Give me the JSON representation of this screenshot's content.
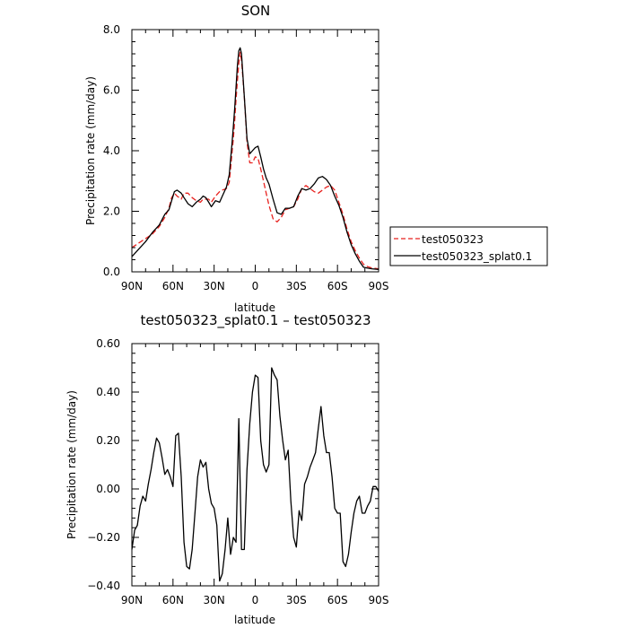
{
  "chart_data": [
    {
      "type": "line",
      "title": "SON",
      "xlabel": "latitude",
      "ylabel": "Precipitation rate (mm/day)",
      "xlim": [
        90,
        -90
      ],
      "ylim": [
        0,
        8
      ],
      "xticks": [
        90,
        60,
        30,
        0,
        -30,
        -60,
        -90
      ],
      "xtick_labels": [
        "90N",
        "60N",
        "30N",
        "0",
        "30S",
        "60S",
        "90S"
      ],
      "yticks": [
        0,
        2,
        4,
        6,
        8
      ],
      "ytick_labels": [
        "0.0",
        "2.0",
        "4.0",
        "6.0",
        "8.0"
      ],
      "legend": "right",
      "series": [
        {
          "name": "test050323",
          "color": "#e8221f",
          "dash": "dashed",
          "x": [
            90,
            85,
            80,
            75,
            70,
            66,
            63,
            61,
            59,
            57,
            54,
            52,
            49,
            46,
            43,
            40,
            38,
            36,
            34,
            32,
            29,
            26,
            24,
            21,
            19,
            18,
            17,
            16,
            15,
            14,
            13,
            12,
            11,
            10,
            8,
            6,
            4,
            2,
            0,
            -2,
            -4,
            -6,
            -8,
            -10,
            -13,
            -16,
            -19,
            -22,
            -25,
            -28,
            -31,
            -34,
            -37,
            -40,
            -43,
            -46,
            -49,
            -52,
            -55,
            -58,
            -61,
            -64,
            -67,
            -70,
            -73,
            -76,
            -79,
            -82,
            -85,
            -90
          ],
          "y": [
            0.8,
            0.95,
            1.1,
            1.25,
            1.5,
            1.8,
            2.1,
            2.45,
            2.6,
            2.5,
            2.4,
            2.6,
            2.6,
            2.45,
            2.35,
            2.3,
            2.4,
            2.4,
            2.4,
            2.3,
            2.5,
            2.65,
            2.7,
            2.75,
            2.95,
            3.4,
            3.9,
            4.4,
            5.0,
            5.7,
            6.3,
            6.9,
            7.25,
            7.0,
            5.8,
            4.3,
            3.6,
            3.6,
            3.8,
            3.75,
            3.4,
            3.0,
            2.6,
            2.2,
            1.75,
            1.65,
            1.8,
            2.05,
            2.1,
            2.15,
            2.4,
            2.75,
            2.85,
            2.75,
            2.65,
            2.6,
            2.7,
            2.8,
            2.85,
            2.7,
            2.3,
            1.9,
            1.4,
            1.0,
            0.7,
            0.45,
            0.25,
            0.17,
            0.13,
            0.1
          ]
        },
        {
          "name": "test050323_splat0.1",
          "color": "#000000",
          "dash": "solid",
          "x": [
            90,
            85,
            80,
            75,
            70,
            66,
            63,
            61,
            59,
            57,
            54,
            52,
            49,
            46,
            43,
            40,
            38,
            36,
            34,
            32,
            29,
            26,
            24,
            21,
            19,
            18,
            17,
            16,
            15,
            14,
            13,
            12,
            11,
            10,
            8,
            6,
            4,
            2,
            0,
            -2,
            -4,
            -6,
            -8,
            -10,
            -13,
            -16,
            -19,
            -22,
            -25,
            -28,
            -31,
            -34,
            -37,
            -40,
            -43,
            -46,
            -49,
            -52,
            -55,
            -58,
            -61,
            -64,
            -67,
            -70,
            -73,
            -76,
            -79,
            -82,
            -85,
            -90
          ],
          "y": [
            0.5,
            0.75,
            1.0,
            1.3,
            1.55,
            1.9,
            2.05,
            2.35,
            2.65,
            2.7,
            2.6,
            2.45,
            2.25,
            2.15,
            2.3,
            2.4,
            2.5,
            2.45,
            2.3,
            2.15,
            2.35,
            2.3,
            2.5,
            2.8,
            3.2,
            3.7,
            4.2,
            4.8,
            5.4,
            6.1,
            6.8,
            7.3,
            7.4,
            7.2,
            5.8,
            4.4,
            3.9,
            4.0,
            4.1,
            4.15,
            3.8,
            3.4,
            3.1,
            2.9,
            2.4,
            1.95,
            1.9,
            2.1,
            2.1,
            2.15,
            2.5,
            2.75,
            2.7,
            2.75,
            2.9,
            3.1,
            3.15,
            3.05,
            2.85,
            2.5,
            2.2,
            1.8,
            1.3,
            0.9,
            0.6,
            0.35,
            0.15,
            0.12,
            0.1,
            0.08
          ]
        }
      ]
    },
    {
      "type": "line",
      "title": "test050323_splat0.1 – test050323",
      "xlabel": "latitude",
      "ylabel": "Precipitation rate (mm/day)",
      "xlim": [
        90,
        -90
      ],
      "ylim": [
        -0.4,
        0.6
      ],
      "xticks": [
        90,
        60,
        30,
        0,
        -30,
        -60,
        -90
      ],
      "xtick_labels": [
        "90N",
        "60N",
        "30N",
        "0",
        "30S",
        "60S",
        "90S"
      ],
      "yticks": [
        -0.4,
        -0.2,
        0,
        0.2,
        0.4,
        0.6
      ],
      "ytick_labels": [
        "−0.40",
        "−0.20",
        "0.00",
        "0.20",
        "0.40",
        "0.60"
      ],
      "series": [
        {
          "color": "#000000",
          "dash": "solid",
          "x": [
            90,
            88,
            86,
            84,
            82,
            80,
            78,
            76,
            74,
            72,
            70,
            68,
            66,
            64,
            62,
            60,
            58,
            56,
            54,
            52,
            50,
            48,
            46,
            44,
            42,
            40,
            38,
            36,
            34,
            32,
            30,
            28,
            26,
            24,
            22,
            20,
            18,
            16,
            14,
            12,
            10,
            8,
            6,
            4,
            2,
            0,
            -2,
            -4,
            -6,
            -8,
            -10,
            -12,
            -14,
            -16,
            -18,
            -20,
            -22,
            -24,
            -26,
            -28,
            -30,
            -32,
            -34,
            -36,
            -38,
            -40,
            -42,
            -44,
            -46,
            -48,
            -50,
            -52,
            -54,
            -56,
            -58,
            -60,
            -62,
            -64,
            -66,
            -68,
            -70,
            -72,
            -74,
            -76,
            -78,
            -80,
            -82,
            -84,
            -86,
            -88,
            -90
          ],
          "y": [
            -0.25,
            -0.17,
            -0.15,
            -0.07,
            -0.03,
            -0.05,
            0.02,
            0.08,
            0.15,
            0.21,
            0.19,
            0.13,
            0.06,
            0.08,
            0.05,
            0.01,
            0.22,
            0.23,
            0.05,
            -0.22,
            -0.32,
            -0.33,
            -0.25,
            -0.1,
            0.05,
            0.12,
            0.09,
            0.11,
            0.0,
            -0.06,
            -0.08,
            -0.15,
            -0.38,
            -0.35,
            -0.25,
            -0.12,
            -0.27,
            -0.2,
            -0.22,
            0.29,
            -0.25,
            -0.25,
            0.08,
            0.27,
            0.4,
            0.47,
            0.46,
            0.2,
            0.1,
            0.07,
            0.1,
            0.5,
            0.47,
            0.45,
            0.3,
            0.2,
            0.12,
            0.16,
            -0.05,
            -0.2,
            -0.24,
            -0.09,
            -0.13,
            0.02,
            0.05,
            0.09,
            0.12,
            0.15,
            0.25,
            0.34,
            0.22,
            0.15,
            0.15,
            0.05,
            -0.08,
            -0.1,
            -0.1,
            -0.3,
            -0.32,
            -0.27,
            -0.18,
            -0.1,
            -0.05,
            -0.03,
            -0.1,
            -0.1,
            -0.07,
            -0.05,
            0.01,
            0.01,
            -0.01
          ]
        }
      ]
    }
  ]
}
